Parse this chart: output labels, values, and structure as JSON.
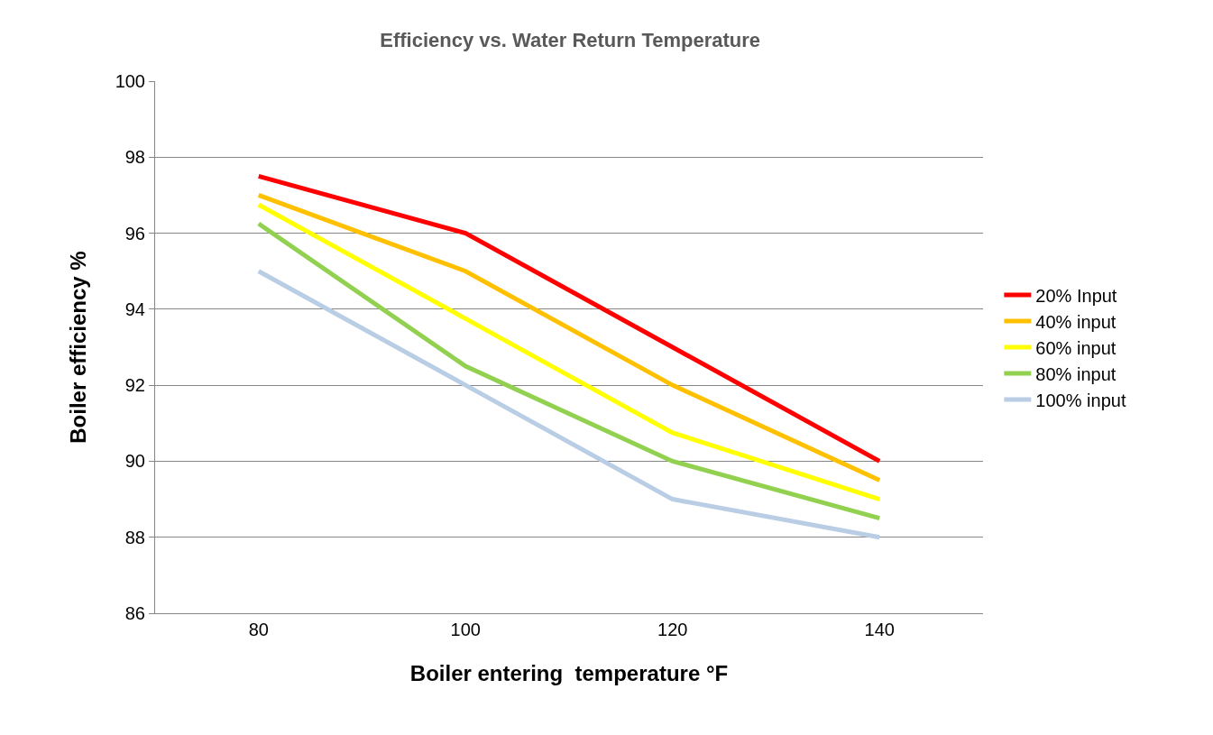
{
  "chart_data": {
    "type": "line",
    "title": "Efficiency vs. Water Return Temperature",
    "xlabel": "Boiler entering  temperature °F",
    "ylabel": "Boiler efficiency %",
    "categories": [
      "80",
      "100",
      "120",
      "140"
    ],
    "series": [
      {
        "name": "20% Input",
        "color": "#ff0000",
        "values": [
          97.5,
          96,
          93,
          90
        ]
      },
      {
        "name": "40% input",
        "color": "#ffc000",
        "values": [
          97,
          95,
          92,
          89.5
        ]
      },
      {
        "name": "60% input",
        "color": "#ffff00",
        "values": [
          96.75,
          93.75,
          90.75,
          89
        ]
      },
      {
        "name": "80% input",
        "color": "#92d050",
        "values": [
          96.25,
          92.5,
          90,
          88.5
        ]
      },
      {
        "name": "100% input",
        "color": "#b9cde5",
        "values": [
          95,
          92,
          89,
          88
        ]
      }
    ],
    "ylim": [
      86,
      100
    ],
    "yticks": [
      86,
      88,
      90,
      92,
      94,
      96,
      98,
      100
    ],
    "grid": "y",
    "legend": "right",
    "marker": "none",
    "line_style": "solid"
  }
}
